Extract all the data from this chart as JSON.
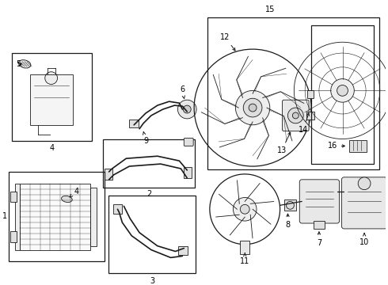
{
  "background_color": "#ffffff",
  "line_color": "#1a1a1a",
  "label_color": "#000000",
  "fig_w": 4.9,
  "fig_h": 3.6,
  "dpi": 100
}
